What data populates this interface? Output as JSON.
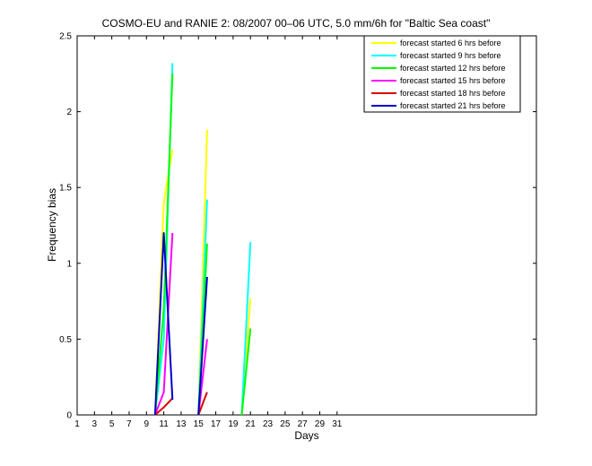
{
  "chart_data": {
    "type": "line",
    "title": "COSMO-EU and RANIE 2: 08/2007 00–06 UTC, 5.0 mm/6h for \"Baltic Sea coast\"",
    "xlabel": "Days",
    "ylabel": "Frequency bias",
    "xlim": [
      1,
      54
    ],
    "ylim": [
      0,
      2.5
    ],
    "xticks": [
      1,
      3,
      5,
      7,
      9,
      11,
      13,
      15,
      17,
      19,
      21,
      23,
      25,
      27,
      29,
      31
    ],
    "yticks": [
      0,
      0.5,
      1,
      1.5,
      2,
      2.5
    ],
    "ytick_labels": [
      "0",
      "0.5",
      "1",
      "1.5",
      "2",
      "2.5"
    ],
    "grid": false,
    "legend_position": "top-right",
    "series": [
      {
        "name": "forecast started 6 hrs before",
        "color": "#ffff00",
        "segments": [
          [
            [
              10,
              0.0
            ],
            [
              11,
              1.4
            ],
            [
              12,
              1.75
            ]
          ],
          [
            [
              15,
              0.0
            ],
            [
              16,
              1.88
            ]
          ],
          [
            [
              20,
              0.0
            ],
            [
              21,
              0.77
            ]
          ]
        ]
      },
      {
        "name": "forecast started 9 hrs before",
        "color": "#00ffff",
        "segments": [
          [
            [
              10,
              0.0
            ],
            [
              11,
              0.5
            ],
            [
              12,
              2.32
            ]
          ],
          [
            [
              15,
              0.0
            ],
            [
              16,
              1.42
            ]
          ],
          [
            [
              20,
              0.0
            ],
            [
              21,
              1.14
            ]
          ]
        ]
      },
      {
        "name": "forecast started 12 hrs before",
        "color": "#00ff00",
        "segments": [
          [
            [
              10,
              0.0
            ],
            [
              11,
              0.7
            ],
            [
              12,
              2.25
            ]
          ],
          [
            [
              15,
              0.0
            ],
            [
              16,
              1.13
            ]
          ],
          [
            [
              20,
              0.0
            ],
            [
              21,
              0.57
            ]
          ]
        ]
      },
      {
        "name": "forecast started 15 hrs before",
        "color": "#ff00ff",
        "segments": [
          [
            [
              10,
              0.0
            ],
            [
              11,
              0.15
            ],
            [
              12,
              1.2
            ]
          ],
          [
            [
              15,
              0.0
            ],
            [
              16,
              0.5
            ]
          ]
        ]
      },
      {
        "name": "forecast started 18 hrs before",
        "color": "#dd0000",
        "segments": [
          [
            [
              10,
              0.0
            ],
            [
              11,
              0.05
            ],
            [
              12,
              0.11
            ]
          ],
          [
            [
              15,
              0.0
            ],
            [
              16,
              0.15
            ]
          ]
        ]
      },
      {
        "name": "forecast started 21 hrs before",
        "color": "#0000cc",
        "segments": [
          [
            [
              10,
              0.0
            ],
            [
              11,
              1.2
            ],
            [
              12,
              0.1
            ]
          ],
          [
            [
              15,
              0.0
            ],
            [
              16,
              0.91
            ]
          ]
        ]
      }
    ]
  }
}
